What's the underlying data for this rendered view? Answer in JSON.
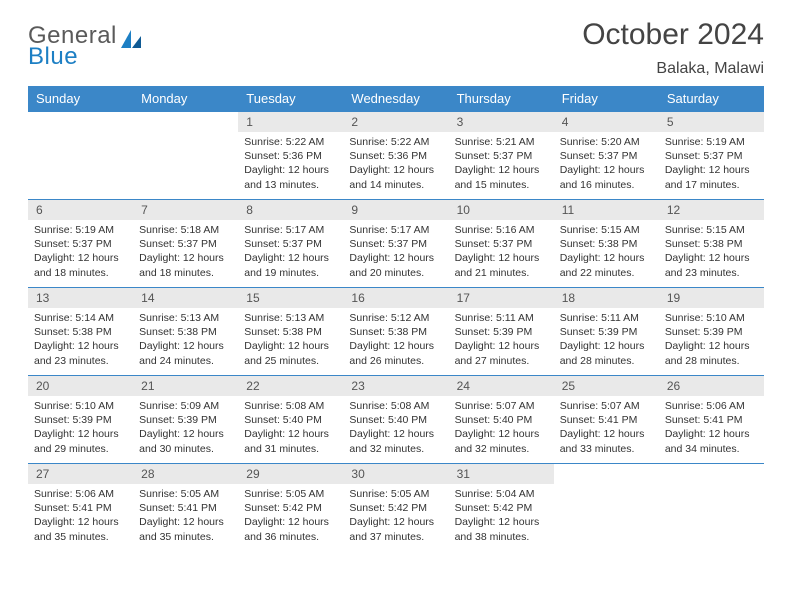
{
  "brand": {
    "word1": "General",
    "word2": "Blue"
  },
  "header": {
    "month_year": "October 2024",
    "location": "Balaka, Malawi"
  },
  "colors": {
    "header_bg": "#3b87c8",
    "header_text": "#ffffff",
    "daynum_bg": "#e9e9e9",
    "cell_border": "#3b87c8",
    "logo_gray": "#5a5a5a",
    "logo_blue": "#1d7fc4"
  },
  "day_labels": [
    "Sunday",
    "Monday",
    "Tuesday",
    "Wednesday",
    "Thursday",
    "Friday",
    "Saturday"
  ],
  "weeks": [
    [
      {
        "n": "",
        "lines": [
          "",
          "",
          "",
          ""
        ]
      },
      {
        "n": "",
        "lines": [
          "",
          "",
          "",
          ""
        ]
      },
      {
        "n": "1",
        "lines": [
          "Sunrise: 5:22 AM",
          "Sunset: 5:36 PM",
          "Daylight: 12 hours",
          "and 13 minutes."
        ]
      },
      {
        "n": "2",
        "lines": [
          "Sunrise: 5:22 AM",
          "Sunset: 5:36 PM",
          "Daylight: 12 hours",
          "and 14 minutes."
        ]
      },
      {
        "n": "3",
        "lines": [
          "Sunrise: 5:21 AM",
          "Sunset: 5:37 PM",
          "Daylight: 12 hours",
          "and 15 minutes."
        ]
      },
      {
        "n": "4",
        "lines": [
          "Sunrise: 5:20 AM",
          "Sunset: 5:37 PM",
          "Daylight: 12 hours",
          "and 16 minutes."
        ]
      },
      {
        "n": "5",
        "lines": [
          "Sunrise: 5:19 AM",
          "Sunset: 5:37 PM",
          "Daylight: 12 hours",
          "and 17 minutes."
        ]
      }
    ],
    [
      {
        "n": "6",
        "lines": [
          "Sunrise: 5:19 AM",
          "Sunset: 5:37 PM",
          "Daylight: 12 hours",
          "and 18 minutes."
        ]
      },
      {
        "n": "7",
        "lines": [
          "Sunrise: 5:18 AM",
          "Sunset: 5:37 PM",
          "Daylight: 12 hours",
          "and 18 minutes."
        ]
      },
      {
        "n": "8",
        "lines": [
          "Sunrise: 5:17 AM",
          "Sunset: 5:37 PM",
          "Daylight: 12 hours",
          "and 19 minutes."
        ]
      },
      {
        "n": "9",
        "lines": [
          "Sunrise: 5:17 AM",
          "Sunset: 5:37 PM",
          "Daylight: 12 hours",
          "and 20 minutes."
        ]
      },
      {
        "n": "10",
        "lines": [
          "Sunrise: 5:16 AM",
          "Sunset: 5:37 PM",
          "Daylight: 12 hours",
          "and 21 minutes."
        ]
      },
      {
        "n": "11",
        "lines": [
          "Sunrise: 5:15 AM",
          "Sunset: 5:38 PM",
          "Daylight: 12 hours",
          "and 22 minutes."
        ]
      },
      {
        "n": "12",
        "lines": [
          "Sunrise: 5:15 AM",
          "Sunset: 5:38 PM",
          "Daylight: 12 hours",
          "and 23 minutes."
        ]
      }
    ],
    [
      {
        "n": "13",
        "lines": [
          "Sunrise: 5:14 AM",
          "Sunset: 5:38 PM",
          "Daylight: 12 hours",
          "and 23 minutes."
        ]
      },
      {
        "n": "14",
        "lines": [
          "Sunrise: 5:13 AM",
          "Sunset: 5:38 PM",
          "Daylight: 12 hours",
          "and 24 minutes."
        ]
      },
      {
        "n": "15",
        "lines": [
          "Sunrise: 5:13 AM",
          "Sunset: 5:38 PM",
          "Daylight: 12 hours",
          "and 25 minutes."
        ]
      },
      {
        "n": "16",
        "lines": [
          "Sunrise: 5:12 AM",
          "Sunset: 5:38 PM",
          "Daylight: 12 hours",
          "and 26 minutes."
        ]
      },
      {
        "n": "17",
        "lines": [
          "Sunrise: 5:11 AM",
          "Sunset: 5:39 PM",
          "Daylight: 12 hours",
          "and 27 minutes."
        ]
      },
      {
        "n": "18",
        "lines": [
          "Sunrise: 5:11 AM",
          "Sunset: 5:39 PM",
          "Daylight: 12 hours",
          "and 28 minutes."
        ]
      },
      {
        "n": "19",
        "lines": [
          "Sunrise: 5:10 AM",
          "Sunset: 5:39 PM",
          "Daylight: 12 hours",
          "and 28 minutes."
        ]
      }
    ],
    [
      {
        "n": "20",
        "lines": [
          "Sunrise: 5:10 AM",
          "Sunset: 5:39 PM",
          "Daylight: 12 hours",
          "and 29 minutes."
        ]
      },
      {
        "n": "21",
        "lines": [
          "Sunrise: 5:09 AM",
          "Sunset: 5:39 PM",
          "Daylight: 12 hours",
          "and 30 minutes."
        ]
      },
      {
        "n": "22",
        "lines": [
          "Sunrise: 5:08 AM",
          "Sunset: 5:40 PM",
          "Daylight: 12 hours",
          "and 31 minutes."
        ]
      },
      {
        "n": "23",
        "lines": [
          "Sunrise: 5:08 AM",
          "Sunset: 5:40 PM",
          "Daylight: 12 hours",
          "and 32 minutes."
        ]
      },
      {
        "n": "24",
        "lines": [
          "Sunrise: 5:07 AM",
          "Sunset: 5:40 PM",
          "Daylight: 12 hours",
          "and 32 minutes."
        ]
      },
      {
        "n": "25",
        "lines": [
          "Sunrise: 5:07 AM",
          "Sunset: 5:41 PM",
          "Daylight: 12 hours",
          "and 33 minutes."
        ]
      },
      {
        "n": "26",
        "lines": [
          "Sunrise: 5:06 AM",
          "Sunset: 5:41 PM",
          "Daylight: 12 hours",
          "and 34 minutes."
        ]
      }
    ],
    [
      {
        "n": "27",
        "lines": [
          "Sunrise: 5:06 AM",
          "Sunset: 5:41 PM",
          "Daylight: 12 hours",
          "and 35 minutes."
        ]
      },
      {
        "n": "28",
        "lines": [
          "Sunrise: 5:05 AM",
          "Sunset: 5:41 PM",
          "Daylight: 12 hours",
          "and 35 minutes."
        ]
      },
      {
        "n": "29",
        "lines": [
          "Sunrise: 5:05 AM",
          "Sunset: 5:42 PM",
          "Daylight: 12 hours",
          "and 36 minutes."
        ]
      },
      {
        "n": "30",
        "lines": [
          "Sunrise: 5:05 AM",
          "Sunset: 5:42 PM",
          "Daylight: 12 hours",
          "and 37 minutes."
        ]
      },
      {
        "n": "31",
        "lines": [
          "Sunrise: 5:04 AM",
          "Sunset: 5:42 PM",
          "Daylight: 12 hours",
          "and 38 minutes."
        ]
      },
      {
        "n": "",
        "lines": [
          "",
          "",
          "",
          ""
        ]
      },
      {
        "n": "",
        "lines": [
          "",
          "",
          "",
          ""
        ]
      }
    ]
  ]
}
